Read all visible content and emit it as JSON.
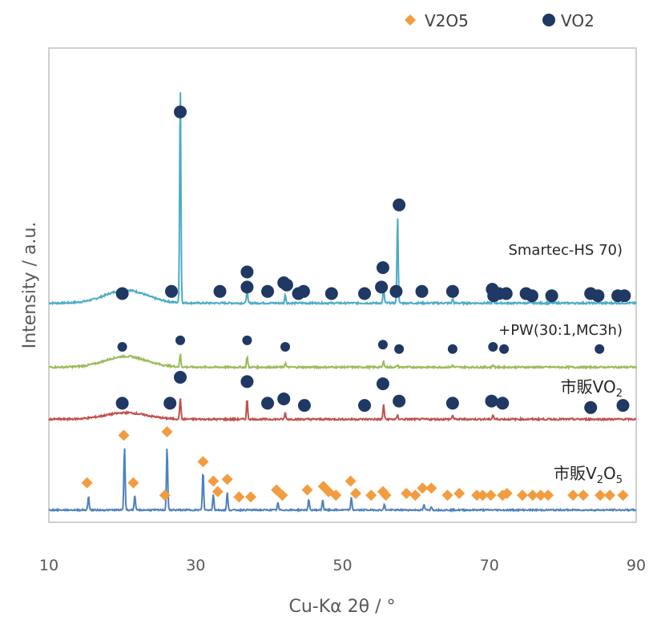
{
  "chart_data": {
    "type": "line",
    "xlabel": "Cu-Kα 2θ / °",
    "ylabel": "Intensity / a.u.",
    "xlim": [
      10,
      90
    ],
    "xticks": [
      10,
      30,
      50,
      70,
      90
    ],
    "legend": {
      "placement": "top-right",
      "entries": [
        {
          "name": "V2O5",
          "marker": "diamond",
          "color": "#f39c3f"
        },
        {
          "name": "VO2",
          "marker": "circle",
          "color": "#1f3864"
        }
      ]
    },
    "series": [
      {
        "label_main": "Smartec-HS 70)",
        "label_sub": "",
        "label_tail": "",
        "color": "#4bacc6",
        "baseline": 0.03,
        "hump": {
          "center": 20.5,
          "width": 4.0,
          "height": 0.06
        },
        "peaks": [
          {
            "x": 27.9,
            "h": 1.0
          },
          {
            "x": 37.0,
            "h": 0.06
          },
          {
            "x": 42.2,
            "h": 0.04
          },
          {
            "x": 55.6,
            "h": 0.07
          },
          {
            "x": 57.5,
            "h": 0.4
          },
          {
            "x": 65.0,
            "h": 0.02
          },
          {
            "x": 70.5,
            "h": 0.02
          }
        ],
        "markers": [
          {
            "type": "circle",
            "x": 20.0,
            "y": 0.05
          },
          {
            "type": "circle",
            "x": 26.7,
            "y": 0.06
          },
          {
            "type": "circle",
            "x": 27.9,
            "y": 0.89
          },
          {
            "type": "circle",
            "x": 33.3,
            "y": 0.06
          },
          {
            "type": "circle",
            "x": 37.0,
            "y": 0.15
          },
          {
            "type": "circle",
            "x": 37.0,
            "y": 0.08
          },
          {
            "type": "circle",
            "x": 39.8,
            "y": 0.06
          },
          {
            "type": "circle",
            "x": 42.0,
            "y": 0.1
          },
          {
            "type": "circle",
            "x": 42.4,
            "y": 0.09
          },
          {
            "type": "circle",
            "x": 44.0,
            "y": 0.05
          },
          {
            "type": "circle",
            "x": 44.7,
            "y": 0.06
          },
          {
            "type": "circle",
            "x": 48.5,
            "y": 0.05
          },
          {
            "type": "circle",
            "x": 53.0,
            "y": 0.05
          },
          {
            "type": "circle",
            "x": 55.5,
            "y": 0.17
          },
          {
            "type": "circle",
            "x": 55.3,
            "y": 0.08
          },
          {
            "type": "circle",
            "x": 57.3,
            "y": 0.06
          },
          {
            "type": "circle",
            "x": 57.7,
            "y": 0.46
          },
          {
            "type": "circle",
            "x": 60.8,
            "y": 0.06
          },
          {
            "type": "circle",
            "x": 65.0,
            "y": 0.06
          },
          {
            "type": "circle",
            "x": 70.4,
            "y": 0.07
          },
          {
            "type": "circle",
            "x": 70.6,
            "y": 0.04
          },
          {
            "type": "circle",
            "x": 71.3,
            "y": 0.05
          },
          {
            "type": "circle",
            "x": 72.3,
            "y": 0.05
          },
          {
            "type": "circle",
            "x": 75.0,
            "y": 0.05
          },
          {
            "type": "circle",
            "x": 75.8,
            "y": 0.04
          },
          {
            "type": "circle",
            "x": 78.5,
            "y": 0.04
          },
          {
            "type": "circle",
            "x": 83.8,
            "y": 0.05
          },
          {
            "type": "circle",
            "x": 84.8,
            "y": 0.04
          },
          {
            "type": "circle",
            "x": 87.5,
            "y": 0.04
          },
          {
            "type": "circle",
            "x": 88.4,
            "y": 0.04
          }
        ]
      },
      {
        "label_main": "+PW(30:1,MC3h)",
        "label_sub": "",
        "label_tail": "",
        "color": "#9bbb59",
        "baseline": 0.03,
        "hump": {
          "center": 20.5,
          "width": 4.0,
          "height": 0.05
        },
        "peaks": [
          {
            "x": 27.9,
            "h": 0.06
          },
          {
            "x": 37.0,
            "h": 0.05
          },
          {
            "x": 42.2,
            "h": 0.02
          },
          {
            "x": 55.6,
            "h": 0.03
          },
          {
            "x": 57.5,
            "h": 0.01
          },
          {
            "x": 65.0,
            "h": 0.01
          },
          {
            "x": 70.5,
            "h": 0.01
          }
        ],
        "markers": [
          {
            "type": "circle",
            "x": 20.0,
            "y": 0.1
          },
          {
            "type": "circle",
            "x": 27.9,
            "y": 0.13
          },
          {
            "type": "circle",
            "x": 37.0,
            "y": 0.13
          },
          {
            "type": "circle",
            "x": 42.2,
            "y": 0.1
          },
          {
            "type": "circle",
            "x": 55.5,
            "y": 0.11
          },
          {
            "type": "circle",
            "x": 57.7,
            "y": 0.09
          },
          {
            "type": "circle",
            "x": 65.0,
            "y": 0.09
          },
          {
            "type": "circle",
            "x": 70.5,
            "y": 0.1
          },
          {
            "type": "circle",
            "x": 72.0,
            "y": 0.09
          },
          {
            "type": "circle",
            "x": 85.0,
            "y": 0.09
          }
        ]
      },
      {
        "label_main": "市販VO",
        "label_sub": "2",
        "label_tail": "",
        "color": "#c0504d",
        "baseline": 0.03,
        "hump": {
          "center": 20.5,
          "width": 4.0,
          "height": 0.03
        },
        "peaks": [
          {
            "x": 27.9,
            "h": 0.1
          },
          {
            "x": 37.0,
            "h": 0.09
          },
          {
            "x": 42.2,
            "h": 0.03
          },
          {
            "x": 55.6,
            "h": 0.07
          },
          {
            "x": 57.5,
            "h": 0.02
          },
          {
            "x": 65.0,
            "h": 0.02
          },
          {
            "x": 70.5,
            "h": 0.02
          }
        ],
        "markers": [
          {
            "type": "circle",
            "x": 20.0,
            "y": 0.08
          },
          {
            "type": "circle",
            "x": 26.5,
            "y": 0.08
          },
          {
            "type": "circle",
            "x": 27.9,
            "y": 0.2
          },
          {
            "type": "circle",
            "x": 37.0,
            "y": 0.18
          },
          {
            "type": "circle",
            "x": 39.8,
            "y": 0.08
          },
          {
            "type": "circle",
            "x": 42.0,
            "y": 0.1
          },
          {
            "type": "circle",
            "x": 44.8,
            "y": 0.07
          },
          {
            "type": "circle",
            "x": 53.0,
            "y": 0.07
          },
          {
            "type": "circle",
            "x": 55.5,
            "y": 0.17
          },
          {
            "type": "circle",
            "x": 57.7,
            "y": 0.09
          },
          {
            "type": "circle",
            "x": 65.0,
            "y": 0.08
          },
          {
            "type": "circle",
            "x": 70.3,
            "y": 0.09
          },
          {
            "type": "circle",
            "x": 71.8,
            "y": 0.08
          },
          {
            "type": "circle",
            "x": 83.8,
            "y": 0.06
          },
          {
            "type": "circle",
            "x": 88.2,
            "y": 0.07
          }
        ]
      },
      {
        "label_main": "市販V",
        "label_sub": "2",
        "label_tail": "O",
        "label_sub2": "5",
        "color": "#4f81bd",
        "baseline": 0.03,
        "hump": {
          "center": 20.5,
          "width": 4.0,
          "height": 0.0
        },
        "peaks": [
          {
            "x": 15.4,
            "h": 0.08
          },
          {
            "x": 20.3,
            "h": 0.36
          },
          {
            "x": 21.7,
            "h": 0.08
          },
          {
            "x": 26.1,
            "h": 0.36
          },
          {
            "x": 31.0,
            "h": 0.22
          },
          {
            "x": 32.4,
            "h": 0.09
          },
          {
            "x": 34.3,
            "h": 0.1
          },
          {
            "x": 41.2,
            "h": 0.04
          },
          {
            "x": 45.4,
            "h": 0.06
          },
          {
            "x": 47.3,
            "h": 0.06
          },
          {
            "x": 51.2,
            "h": 0.07
          },
          {
            "x": 55.7,
            "h": 0.03
          },
          {
            "x": 61.1,
            "h": 0.03
          },
          {
            "x": 62.1,
            "h": 0.02
          }
        ],
        "markers": [
          {
            "type": "diamond",
            "x": 15.2,
            "y": 0.16
          },
          {
            "type": "diamond",
            "x": 20.2,
            "y": 0.43
          },
          {
            "type": "diamond",
            "x": 21.5,
            "y": 0.16
          },
          {
            "type": "diamond",
            "x": 25.8,
            "y": 0.09
          },
          {
            "type": "diamond",
            "x": 26.1,
            "y": 0.45
          },
          {
            "type": "diamond",
            "x": 31.0,
            "y": 0.28
          },
          {
            "type": "diamond",
            "x": 32.4,
            "y": 0.17
          },
          {
            "type": "diamond",
            "x": 33.0,
            "y": 0.11
          },
          {
            "type": "diamond",
            "x": 34.3,
            "y": 0.18
          },
          {
            "type": "diamond",
            "x": 35.9,
            "y": 0.08
          },
          {
            "type": "diamond",
            "x": 37.5,
            "y": 0.08
          },
          {
            "type": "diamond",
            "x": 41.0,
            "y": 0.12
          },
          {
            "type": "diamond",
            "x": 41.8,
            "y": 0.09
          },
          {
            "type": "diamond",
            "x": 45.2,
            "y": 0.12
          },
          {
            "type": "diamond",
            "x": 47.4,
            "y": 0.14
          },
          {
            "type": "diamond",
            "x": 48.1,
            "y": 0.11
          },
          {
            "type": "diamond",
            "x": 49.1,
            "y": 0.09
          },
          {
            "type": "diamond",
            "x": 51.1,
            "y": 0.17
          },
          {
            "type": "diamond",
            "x": 51.8,
            "y": 0.1
          },
          {
            "type": "diamond",
            "x": 53.9,
            "y": 0.09
          },
          {
            "type": "diamond",
            "x": 55.5,
            "y": 0.11
          },
          {
            "type": "diamond",
            "x": 55.9,
            "y": 0.09
          },
          {
            "type": "diamond",
            "x": 58.7,
            "y": 0.1
          },
          {
            "type": "diamond",
            "x": 59.9,
            "y": 0.09
          },
          {
            "type": "diamond",
            "x": 60.9,
            "y": 0.13
          },
          {
            "type": "diamond",
            "x": 62.1,
            "y": 0.13
          },
          {
            "type": "diamond",
            "x": 64.3,
            "y": 0.09
          },
          {
            "type": "diamond",
            "x": 65.9,
            "y": 0.1
          },
          {
            "type": "diamond",
            "x": 68.3,
            "y": 0.09
          },
          {
            "type": "diamond",
            "x": 69.1,
            "y": 0.09
          },
          {
            "type": "diamond",
            "x": 70.2,
            "y": 0.09
          },
          {
            "type": "diamond",
            "x": 71.8,
            "y": 0.09
          },
          {
            "type": "diamond",
            "x": 72.4,
            "y": 0.1
          },
          {
            "type": "diamond",
            "x": 74.5,
            "y": 0.09
          },
          {
            "type": "diamond",
            "x": 75.9,
            "y": 0.09
          },
          {
            "type": "diamond",
            "x": 77.0,
            "y": 0.09
          },
          {
            "type": "diamond",
            "x": 78.0,
            "y": 0.09
          },
          {
            "type": "diamond",
            "x": 81.4,
            "y": 0.09
          },
          {
            "type": "diamond",
            "x": 82.8,
            "y": 0.09
          },
          {
            "type": "diamond",
            "x": 85.1,
            "y": 0.09
          },
          {
            "type": "diamond",
            "x": 86.4,
            "y": 0.09
          },
          {
            "type": "diamond",
            "x": 88.2,
            "y": 0.09
          }
        ]
      }
    ]
  }
}
